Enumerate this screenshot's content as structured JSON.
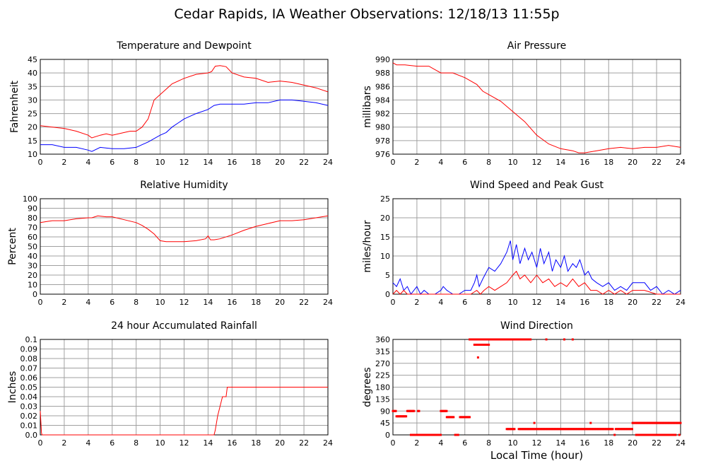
{
  "page": {
    "title": "Cedar Rapids, IA Weather Observations: 12/18/13 11:55p"
  },
  "colors": {
    "red": "#ff0000",
    "blue": "#0000ff",
    "grid": "#a0a0a0",
    "frame": "#000000"
  },
  "chart_data": [
    {
      "id": "temp",
      "type": "line",
      "title": "Temperature and Dewpoint",
      "xlabel": "",
      "ylabel": "Fahrenheit",
      "xlim": [
        0,
        24
      ],
      "ylim": [
        10,
        45
      ],
      "xticks": [
        0,
        2,
        4,
        6,
        8,
        10,
        12,
        14,
        16,
        18,
        20,
        22,
        24
      ],
      "yticks": [
        10,
        15,
        20,
        25,
        30,
        35,
        40,
        45
      ],
      "series": [
        {
          "color": "#ff0000",
          "x": [
            0,
            1,
            2,
            3,
            4,
            4.3,
            5,
            5.5,
            6,
            7,
            7.5,
            8,
            8.5,
            9,
            9.5,
            10,
            10.5,
            11,
            12,
            13,
            14,
            14.3,
            14.6,
            15,
            15.5,
            16,
            17,
            18,
            19,
            20,
            21,
            22,
            23,
            24
          ],
          "y": [
            20.5,
            20,
            19.5,
            18.5,
            17,
            16,
            17,
            17.5,
            17,
            18,
            18.5,
            18.5,
            20,
            23,
            30,
            32,
            34,
            36,
            38,
            39.5,
            40,
            40.5,
            42.5,
            42.7,
            42.3,
            40,
            38.5,
            38,
            36.5,
            37,
            36.5,
            35.5,
            34.5,
            33
          ]
        },
        {
          "color": "#0000ff",
          "x": [
            0,
            1,
            2,
            3,
            4,
            4.3,
            5,
            6,
            7,
            8,
            8.5,
            9,
            10,
            10.5,
            11,
            12,
            13,
            14,
            14.5,
            15,
            16,
            17,
            18,
            19,
            20,
            21,
            22,
            23,
            24
          ],
          "y": [
            13.5,
            13.5,
            12.5,
            12.5,
            11.5,
            11,
            12.5,
            12,
            12,
            12.5,
            13.5,
            14.5,
            17,
            18,
            20,
            23,
            25,
            26.5,
            28,
            28.5,
            28.5,
            28.5,
            29,
            29,
            30,
            30,
            29.5,
            29,
            28
          ]
        }
      ]
    },
    {
      "id": "pressure",
      "type": "line",
      "title": "Air Pressure",
      "xlabel": "",
      "ylabel": "millibars",
      "xlim": [
        0,
        24
      ],
      "ylim": [
        976,
        990
      ],
      "xticks": [
        0,
        2,
        4,
        6,
        8,
        10,
        12,
        14,
        16,
        18,
        20,
        22,
        24
      ],
      "yticks": [
        976,
        978,
        980,
        982,
        984,
        986,
        988,
        990
      ],
      "series": [
        {
          "color": "#ff0000",
          "x": [
            0,
            0.3,
            1,
            2,
            3,
            3.5,
            4,
            5,
            6,
            7,
            7.5,
            8,
            9,
            10,
            11,
            12,
            13,
            14,
            15,
            15.5,
            16,
            17,
            18,
            19,
            20,
            21,
            22,
            23,
            24
          ],
          "y": [
            989.5,
            989.2,
            989.2,
            989,
            989,
            988.5,
            988,
            988,
            987.3,
            986.3,
            985.3,
            984.8,
            983.8,
            982.3,
            980.8,
            978.8,
            977.5,
            976.8,
            976.5,
            976.2,
            976.2,
            976.5,
            976.8,
            977,
            976.8,
            977,
            977,
            977.3,
            977
          ]
        }
      ]
    },
    {
      "id": "humidity",
      "type": "line",
      "title": "Relative Humidity",
      "xlabel": "",
      "ylabel": "Percent",
      "xlim": [
        0,
        24
      ],
      "ylim": [
        0,
        100
      ],
      "xticks": [
        0,
        2,
        4,
        6,
        8,
        10,
        12,
        14,
        16,
        18,
        20,
        22,
        24
      ],
      "yticks": [
        0,
        10,
        20,
        30,
        40,
        50,
        60,
        70,
        80,
        90,
        100
      ],
      "series": [
        {
          "color": "#ff0000",
          "x": [
            0,
            0.5,
            1,
            2,
            3,
            4,
            4.3,
            4.8,
            5.5,
            6,
            7,
            8,
            8.5,
            9,
            9.5,
            10,
            10.5,
            11,
            12,
            13,
            13.8,
            14,
            14.2,
            14.5,
            15,
            16,
            17,
            18,
            19,
            20,
            21,
            22,
            23,
            24
          ],
          "y": [
            75,
            76,
            77,
            77,
            79,
            80,
            80,
            82,
            81,
            81,
            78,
            75,
            72,
            68,
            63,
            56,
            55,
            55,
            55,
            56,
            58,
            61,
            57,
            57,
            58,
            62,
            67,
            71,
            74,
            77,
            77,
            78,
            80,
            82
          ]
        }
      ]
    },
    {
      "id": "wind",
      "type": "line",
      "title": "Wind Speed and Peak Gust",
      "xlabel": "",
      "ylabel": "miles/hour",
      "xlim": [
        0,
        24
      ],
      "ylim": [
        0,
        25
      ],
      "xticks": [
        0,
        2,
        4,
        6,
        8,
        10,
        12,
        14,
        16,
        18,
        20,
        22,
        24
      ],
      "yticks": [
        0,
        5,
        10,
        15,
        20,
        25
      ],
      "series": [
        {
          "color": "#0000ff",
          "x": [
            0,
            0.3,
            0.6,
            0.9,
            1.2,
            1.5,
            2,
            2.3,
            2.6,
            3,
            3.5,
            4,
            4.2,
            4.5,
            5,
            5.5,
            6,
            6.5,
            6.8,
            7,
            7.2,
            7.5,
            8,
            8.5,
            9,
            9.5,
            9.8,
            10,
            10.3,
            10.6,
            11,
            11.3,
            11.6,
            12,
            12.3,
            12.6,
            13,
            13.3,
            13.6,
            14,
            14.3,
            14.6,
            15,
            15.3,
            15.6,
            16,
            16.3,
            16.6,
            17,
            17.5,
            18,
            18.5,
            19,
            19.5,
            20,
            20.5,
            21,
            21.5,
            22,
            22.5,
            23,
            23.5,
            24
          ],
          "y": [
            3,
            2,
            4,
            1,
            2,
            0,
            2,
            0,
            1,
            0,
            0,
            1,
            2,
            1,
            0,
            0,
            1,
            1,
            3,
            5,
            2,
            4,
            7,
            6,
            8,
            11,
            14,
            9,
            13,
            8,
            12,
            9,
            11,
            7,
            12,
            8,
            11,
            6,
            9,
            7,
            10,
            6,
            8,
            7,
            9,
            5,
            6,
            4,
            3,
            2,
            3,
            1,
            2,
            1,
            3,
            3,
            3,
            1,
            2,
            0,
            1,
            0,
            1
          ]
        },
        {
          "color": "#ff0000",
          "x": [
            0,
            0.3,
            0.6,
            0.9,
            1.2,
            1.5,
            2,
            3,
            4,
            5,
            6,
            6.5,
            7,
            7.3,
            7.6,
            8,
            8.5,
            9,
            9.5,
            10,
            10.3,
            10.6,
            11,
            11.5,
            12,
            12.5,
            13,
            13.5,
            14,
            14.5,
            15,
            15.5,
            16,
            16.5,
            17,
            17.5,
            18,
            18.5,
            19,
            19.5,
            20,
            20.5,
            21,
            22,
            23,
            24
          ],
          "y": [
            0,
            1,
            0,
            1,
            0,
            0,
            0,
            0,
            0,
            0,
            0,
            0,
            1,
            0,
            1,
            2,
            1,
            2,
            3,
            5,
            6,
            4,
            5,
            3,
            5,
            3,
            4,
            2,
            3,
            2,
            4,
            2,
            3,
            1,
            1,
            0,
            1,
            0,
            1,
            0,
            1,
            1,
            1,
            0,
            0,
            0
          ]
        }
      ]
    },
    {
      "id": "rain",
      "type": "line",
      "title": "24 hour Accumulated Rainfall",
      "xlabel": "",
      "ylabel": "Inches",
      "xlim": [
        0,
        24
      ],
      "ylim": [
        0,
        0.1
      ],
      "xticks": [
        0,
        2,
        4,
        6,
        8,
        10,
        12,
        14,
        16,
        18,
        20,
        22,
        24
      ],
      "yticks": [
        "0.0",
        "0.01",
        "0.02",
        "0.03",
        "0.04",
        "0.05",
        "0.06",
        "0.07",
        "0.08",
        "0.09",
        "0.1"
      ],
      "series": [
        {
          "color": "#ff0000",
          "x": [
            0,
            0.1,
            0.15,
            14.5,
            14.6,
            14.8,
            15,
            15.2,
            15.5,
            15.6,
            15.7,
            24
          ],
          "y": [
            0.025,
            0.002,
            0,
            0,
            0.005,
            0.02,
            0.03,
            0.04,
            0.04,
            0.05,
            0.05,
            0.05
          ]
        }
      ]
    },
    {
      "id": "direction",
      "type": "scatter",
      "title": "Wind Direction",
      "xlabel": "Local Time (hour)",
      "ylabel": "degrees",
      "xlim": [
        0,
        24
      ],
      "ylim": [
        0,
        360
      ],
      "xticks": [
        0,
        2,
        4,
        6,
        8,
        10,
        12,
        14,
        16,
        18,
        20,
        22,
        24
      ],
      "yticks": [
        0,
        45,
        90,
        135,
        180,
        225,
        270,
        315,
        360
      ],
      "segments": [
        {
          "x0": 0.0,
          "x1": 0.3,
          "y": 90
        },
        {
          "x0": 0.3,
          "x1": 1.1,
          "y": 70
        },
        {
          "x0": 1.2,
          "x1": 1.8,
          "y": 90
        },
        {
          "x0": 1.5,
          "x1": 4.0,
          "y": 0
        },
        {
          "x0": 2.1,
          "x1": 2.2,
          "y": 90
        },
        {
          "x0": 4.0,
          "x1": 4.5,
          "y": 90
        },
        {
          "x0": 4.5,
          "x1": 5.1,
          "y": 67
        },
        {
          "x0": 5.2,
          "x1": 5.5,
          "y": 0
        },
        {
          "x0": 5.6,
          "x1": 6.4,
          "y": 67
        },
        {
          "x0": 6.4,
          "x1": 7.0,
          "y": 360
        },
        {
          "x0": 6.8,
          "x1": 8.0,
          "y": 340
        },
        {
          "x0": 7.0,
          "x1": 11.5,
          "y": 360
        },
        {
          "x0": 9.5,
          "x1": 10.2,
          "y": 22
        },
        {
          "x0": 10.5,
          "x1": 18.4,
          "y": 22
        },
        {
          "x0": 18.6,
          "x1": 20.0,
          "y": 22
        },
        {
          "x0": 20.0,
          "x1": 24.0,
          "y": 45
        },
        {
          "x0": 20.3,
          "x1": 23.6,
          "y": 0
        }
      ],
      "points": [
        {
          "x": 7.1,
          "y": 292
        },
        {
          "x": 12.8,
          "y": 360
        },
        {
          "x": 14.3,
          "y": 360
        },
        {
          "x": 15.0,
          "y": 360
        },
        {
          "x": 11.8,
          "y": 45
        },
        {
          "x": 16.5,
          "y": 45
        },
        {
          "x": 18.5,
          "y": 0
        },
        {
          "x": 23.9,
          "y": 0
        }
      ]
    }
  ]
}
